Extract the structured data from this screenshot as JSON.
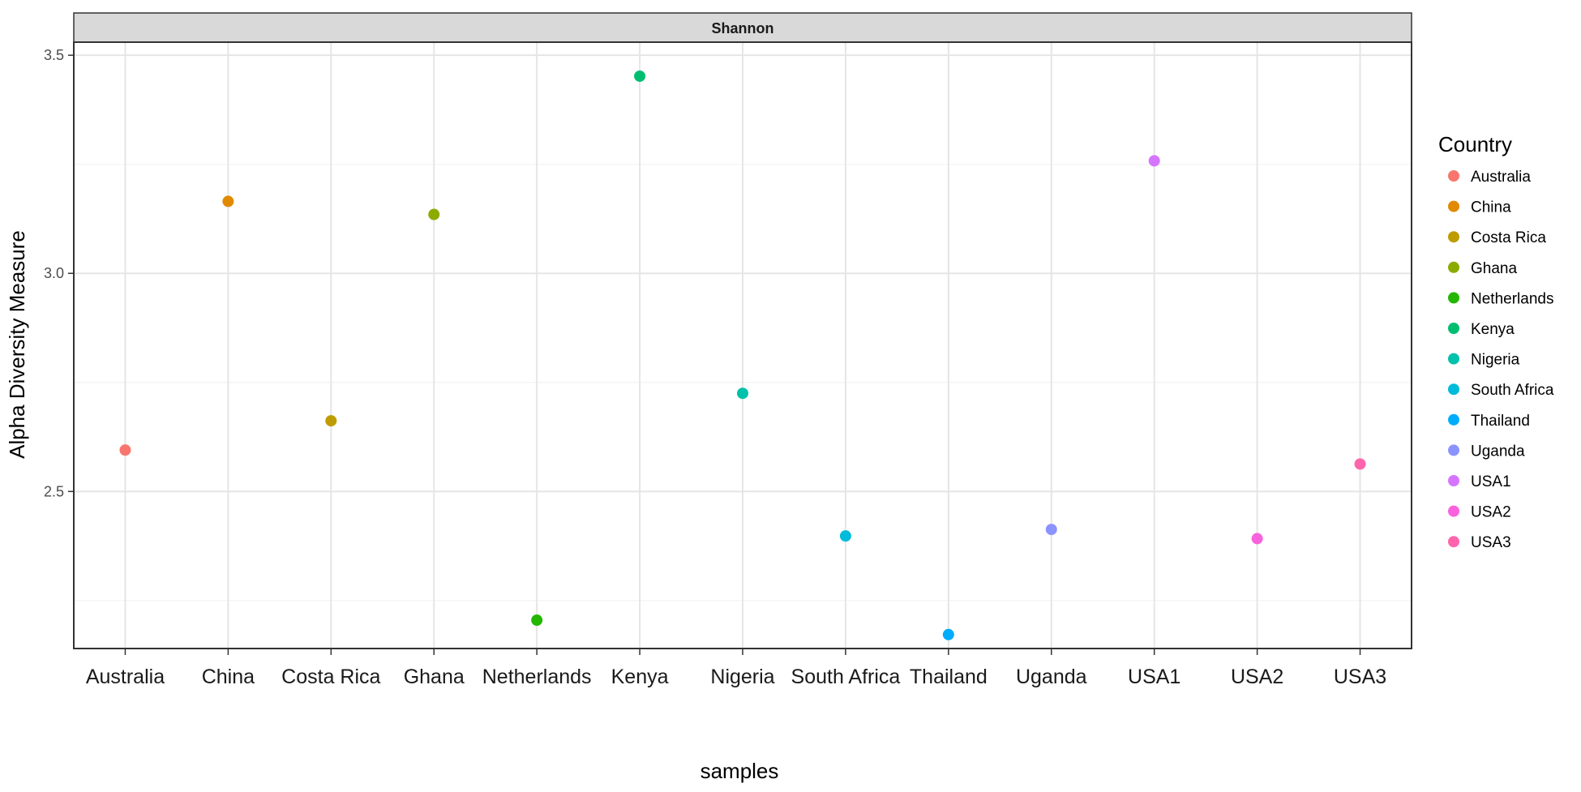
{
  "chart_data": {
    "type": "scatter",
    "facet_label": "Shannon",
    "xlabel": "samples",
    "ylabel": "Alpha Diversity Measure",
    "y_ticks": [
      "2.5",
      "3.0",
      "3.5"
    ],
    "ylim": [
      2.14,
      3.53
    ],
    "grid": true,
    "legend_position": "right",
    "legend_title": "Country",
    "categories": [
      "Australia",
      "China",
      "Costa Rica",
      "Ghana",
      "Netherlands",
      "Kenya",
      "Nigeria",
      "South Africa",
      "Thailand",
      "Uganda",
      "USA1",
      "USA2",
      "USA3"
    ],
    "values": [
      2.595,
      3.165,
      2.662,
      3.135,
      2.205,
      3.452,
      2.725,
      2.398,
      2.172,
      2.413,
      3.258,
      2.392,
      2.563
    ],
    "colors": [
      "#F8766D",
      "#E18A00",
      "#BE9C00",
      "#8CAB00",
      "#24B700",
      "#00BE70",
      "#00C1AB",
      "#00BBDA",
      "#00ACFC",
      "#8B93FF",
      "#D575FE",
      "#F962DD",
      "#FF65AC"
    ],
    "legend": [
      "Australia",
      "China",
      "Costa Rica",
      "Ghana",
      "Netherlands",
      "Kenya",
      "Nigeria",
      "South Africa",
      "Thailand",
      "Uganda",
      "USA1",
      "USA2",
      "USA3"
    ]
  }
}
